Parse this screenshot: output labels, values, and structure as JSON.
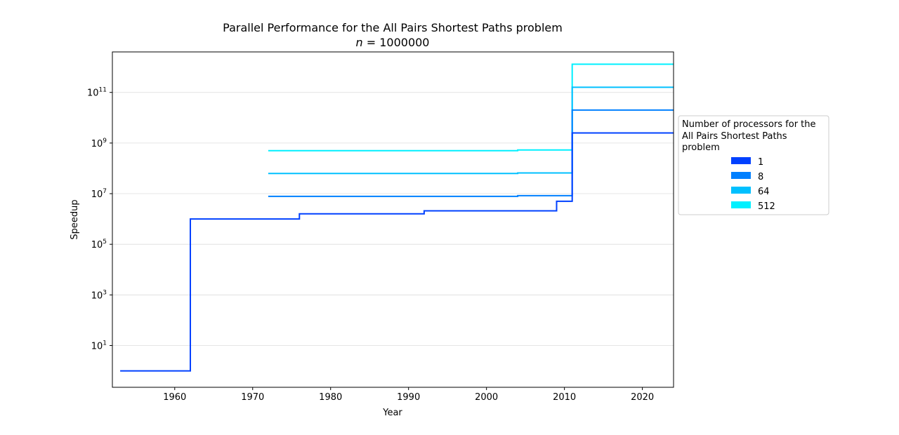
{
  "chart_data": {
    "type": "line",
    "step": "post",
    "title": "Parallel Performance for the All Pairs Shortest Paths problem",
    "subtitle": "n = 1000000",
    "xlabel": "Year",
    "ylabel": "Speedup",
    "xlim": [
      1952,
      2024
    ],
    "xticks": [
      1960,
      1970,
      1980,
      1990,
      2000,
      2010,
      2020
    ],
    "y_scale": "log",
    "ylim_log10": [
      -0.65,
      12.6
    ],
    "yticks": [
      {
        "base": "10",
        "exp": "1",
        "log10": 1
      },
      {
        "base": "10",
        "exp": "3",
        "log10": 3
      },
      {
        "base": "10",
        "exp": "5",
        "log10": 5
      },
      {
        "base": "10",
        "exp": "7",
        "log10": 7
      },
      {
        "base": "10",
        "exp": "9",
        "log10": 9
      },
      {
        "base": "10",
        "exp": "11",
        "log10": 11
      }
    ],
    "grid": "horizontal",
    "legend": {
      "title_lines": [
        "Number of processors for the",
        "All Pairs Shortest Paths",
        "problem"
      ],
      "placement": "right-outside"
    },
    "series": [
      {
        "name": "512",
        "color": "#00f0ff",
        "points": [
          [
            1972,
            500000000.0
          ],
          [
            2004,
            530000000.0
          ],
          [
            2011,
            1300000000000.0
          ],
          [
            2024,
            1300000000000.0
          ]
        ]
      },
      {
        "name": "64",
        "color": "#00c0ff",
        "points": [
          [
            1972,
            63000000.0
          ],
          [
            2004,
            66000000.0
          ],
          [
            2011,
            160000000000.0
          ],
          [
            2024,
            160000000000.0
          ]
        ]
      },
      {
        "name": "8",
        "color": "#0080ff",
        "points": [
          [
            1972,
            7800000.0
          ],
          [
            2004,
            8300000.0
          ],
          [
            2011,
            20000000000.0
          ],
          [
            2024,
            20000000000.0
          ]
        ]
      },
      {
        "name": "1",
        "color": "#0040ff",
        "points": [
          [
            1953,
            1
          ],
          [
            1962,
            1000000.0
          ],
          [
            1976,
            1600000.0
          ],
          [
            1992,
            2100000.0
          ],
          [
            2009,
            5000000.0
          ],
          [
            2011,
            2500000000.0
          ],
          [
            2024,
            2500000000.0
          ]
        ]
      }
    ],
    "legend_order": [
      "1",
      "8",
      "64",
      "512"
    ]
  }
}
